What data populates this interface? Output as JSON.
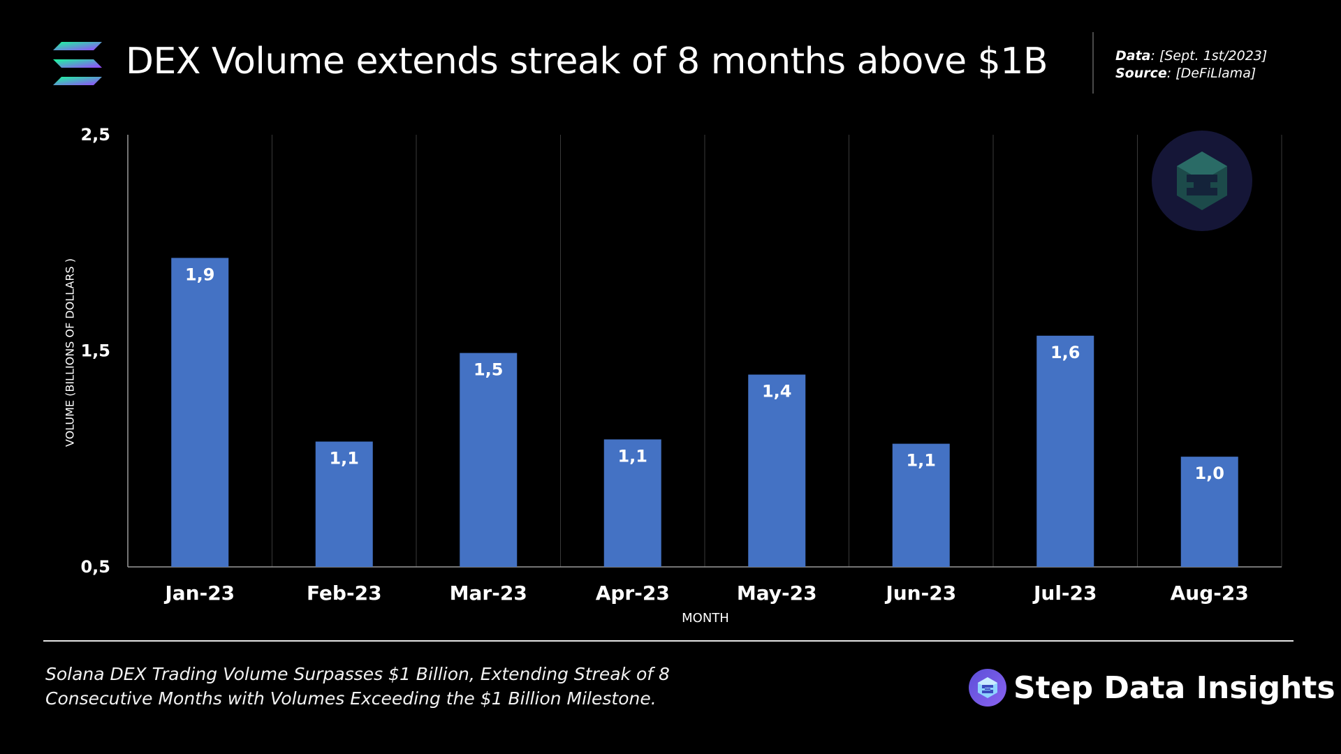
{
  "header": {
    "title": "DEX Volume extends streak of 8 months above $1B",
    "data_label": "Data",
    "data_value": ": [Sept. 1st/2023]",
    "source_label": "Source",
    "source_value": ": [DeFiLlama]"
  },
  "chart_data": {
    "type": "bar",
    "categories": [
      "Jan-23",
      "Feb-23",
      "Mar-23",
      "Apr-23",
      "May-23",
      "Jun-23",
      "Jul-23",
      "Aug-23"
    ],
    "values": [
      1.93,
      1.08,
      1.49,
      1.09,
      1.39,
      1.07,
      1.57,
      1.01
    ],
    "data_labels": [
      "1,9",
      "1,1",
      "1,5",
      "1,1",
      "1,4",
      "1,1",
      "1,6",
      "1,0"
    ],
    "ytick_labels": [
      "2,5",
      "1,5",
      "0,5"
    ],
    "yticks": [
      2.5,
      1.5,
      0.5
    ],
    "ylim": [
      0.5,
      2.5
    ],
    "xlabel": "MONTH",
    "ylabel": "VOLUME (BILLIONS OF DOLLARS )",
    "bar_color": "#4472c4",
    "grid": true
  },
  "footer": {
    "caption_line1": "Solana DEX Trading Volume Surpasses $1 Billion, Extending Streak of 8",
    "caption_line2": "Consecutive Months with Volumes Exceeding the $1 Billion Milestone.",
    "brand": "Step Data Insights"
  },
  "icons": {
    "logo": "solana-logo-icon",
    "badge": "step-finance-logo-icon",
    "brand": "step-logo-icon"
  }
}
